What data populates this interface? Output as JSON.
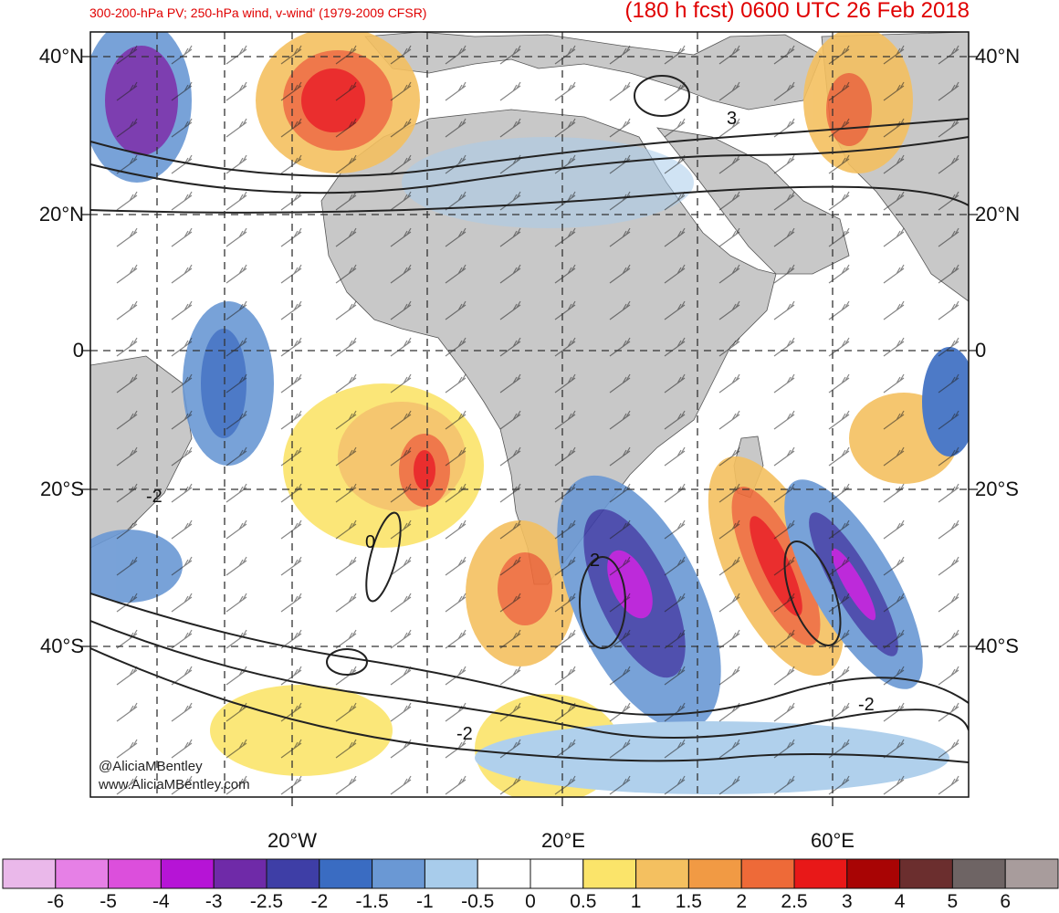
{
  "header": {
    "subtitle": "300-200-hPa PV; 250-hPa wind, v-wind' (1979-2009 CFSR)",
    "title": "(180 h fcst) 0600 UTC 26 Feb 2018"
  },
  "map": {
    "lat_labels": [
      {
        "label": "40°N",
        "lat": 40
      },
      {
        "label": "20°N",
        "lat": 20
      },
      {
        "label": "0",
        "lat": 0
      },
      {
        "label": "20°S",
        "lat": -20
      },
      {
        "label": "40°S",
        "lat": -40
      }
    ],
    "lon_labels": [
      {
        "label": "20°W",
        "lon": -20
      },
      {
        "label": "20°E",
        "lon": 20
      },
      {
        "label": "60°E",
        "lon": 60
      }
    ],
    "lat_range": [
      -52,
      43.5
    ],
    "lon_range": [
      -50,
      80
    ],
    "contour_labels": [
      "3",
      "-2",
      "2",
      "0",
      "-2",
      "-2"
    ],
    "colors": {
      "land": "#c8c8c8",
      "ocean": "#ffffff",
      "contour": "#222222",
      "grid": "#333333"
    }
  },
  "credits": {
    "handle": "@AliciaMBentley",
    "website": "www.AliciaMBentley.com"
  },
  "colorbar": {
    "labels": [
      "-6",
      "-5",
      "-4",
      "-3",
      "-2.5",
      "-2",
      "-1.5",
      "-1",
      "-0.5",
      "0",
      "0.5",
      "1",
      "1.5",
      "2",
      "2.5",
      "3",
      "4",
      "5",
      "6"
    ],
    "colors": [
      "#eab8ea",
      "#e680e6",
      "#dc4fdc",
      "#b614d6",
      "#6f2aa8",
      "#3e3ea6",
      "#3a6cc2",
      "#6a98d4",
      "#a8cceb",
      "#ffffff",
      "#ffffff",
      "#fbe46a",
      "#f4c060",
      "#f19a44",
      "#ee6a38",
      "#e81818",
      "#a80404",
      "#6b2e2e",
      "#6e6464",
      "#a89c9c"
    ]
  }
}
